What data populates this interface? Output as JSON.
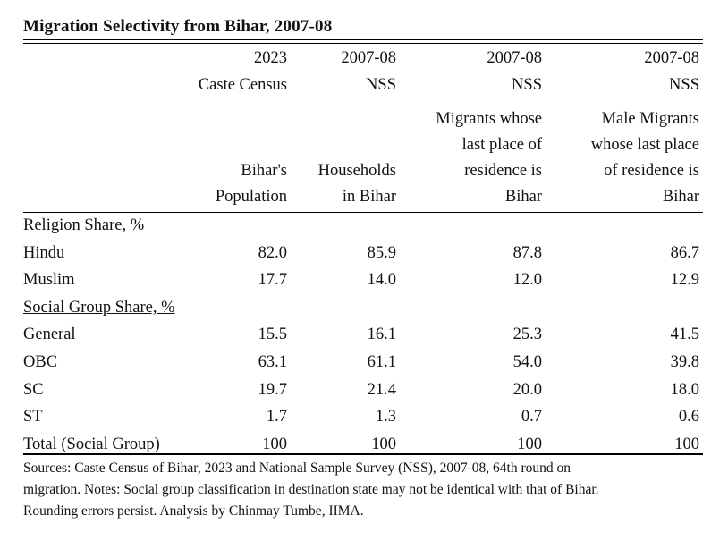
{
  "title": "Migration Selectivity from Bihar, 2007-08",
  "columns": [
    {
      "year": "2023",
      "source": "Caste Census",
      "label": [
        "Bihar's",
        "Population"
      ]
    },
    {
      "year": "2007-08",
      "source": "NSS",
      "label": [
        "Households",
        "in Bihar"
      ]
    },
    {
      "year": "2007-08",
      "source": "NSS",
      "label": [
        "Migrants whose",
        "last place of",
        "residence is",
        "Bihar"
      ]
    },
    {
      "year": "2007-08",
      "source": "NSS",
      "label": [
        "Male Migrants",
        "whose last place",
        "of residence is",
        "Bihar"
      ]
    }
  ],
  "sections": [
    {
      "heading": "Religion Share, %",
      "rows": [
        {
          "label": "Hindu",
          "values": [
            "82.0",
            "85.9",
            "87.8",
            "86.7"
          ]
        },
        {
          "label": "Muslim",
          "values": [
            "17.7",
            "14.0",
            "12.0",
            "12.9"
          ]
        }
      ]
    },
    {
      "heading": "Social Group Share, %",
      "rows": [
        {
          "label": "General",
          "values": [
            "15.5",
            "16.1",
            "25.3",
            "41.5"
          ]
        },
        {
          "label": "OBC",
          "values": [
            "63.1",
            "61.1",
            "54.0",
            "39.8"
          ]
        },
        {
          "label": "SC",
          "values": [
            "19.7",
            "21.4",
            "20.0",
            "18.0"
          ]
        },
        {
          "label": "ST",
          "values": [
            "1.7",
            "1.3",
            "0.7",
            "0.6"
          ]
        },
        {
          "label": "Total (Social Group)",
          "values": [
            "100",
            "100",
            "100",
            "100"
          ]
        }
      ]
    }
  ],
  "footnote": [
    "Sources: Caste Census of Bihar, 2023 and National Sample Survey (NSS), 2007-08, 64th round on",
    "migration. Notes: Social group classification in destination state may not be identical with that of Bihar.",
    "Rounding errors persist. Analysis by Chinmay Tumbe, IIMA."
  ]
}
